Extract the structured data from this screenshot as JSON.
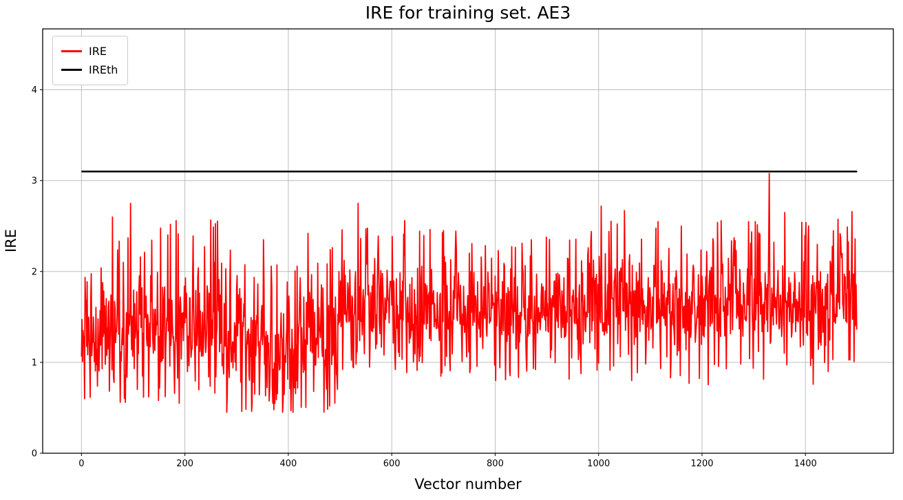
{
  "chart_data": {
    "type": "line",
    "title": "IRE for training set. AE3",
    "xlabel": "Vector number",
    "ylabel": "IRE",
    "xlim": [
      -75,
      1570
    ],
    "ylim": [
      0,
      4.67
    ],
    "xticks": [
      0,
      200,
      400,
      600,
      800,
      1000,
      1200,
      1400
    ],
    "yticks": [
      0,
      1,
      2,
      3,
      4
    ],
    "grid": true,
    "colors": {
      "ire_line": "#ff0000",
      "ireth_line": "#000000",
      "grid": "#bdbdbd",
      "spine": "#000000",
      "background": "#ffffff"
    },
    "legend": {
      "position": "upper-left",
      "entries": [
        {
          "label": "IRE",
          "color": "#ff0000"
        },
        {
          "label": "IREth",
          "color": "#000000"
        }
      ]
    },
    "series": [
      {
        "name": "IRE",
        "color": "#ff0000",
        "type": "noisy-line",
        "n_points": 1500,
        "generator": {
          "seed": 42,
          "segments": [
            {
              "x_start": 0,
              "x_end": 60,
              "mean": 1.35,
              "std": 0.3,
              "min": 0.6,
              "max": 2.1
            },
            {
              "x_start": 60,
              "x_end": 280,
              "mean": 1.42,
              "std": 0.34,
              "min": 0.55,
              "max": 2.58
            },
            {
              "x_start": 280,
              "x_end": 500,
              "mean": 1.24,
              "std": 0.37,
              "min": 0.45,
              "max": 2.3
            },
            {
              "x_start": 500,
              "x_end": 900,
              "mean": 1.58,
              "std": 0.29,
              "min": 0.8,
              "max": 2.48
            },
            {
              "x_start": 900,
              "x_end": 1500,
              "mean": 1.65,
              "std": 0.3,
              "min": 0.75,
              "max": 2.58
            }
          ],
          "peaks": [
            {
              "x": 60,
              "y": 2.6
            },
            {
              "x": 95,
              "y": 2.75
            },
            {
              "x": 172,
              "y": 2.52
            },
            {
              "x": 183,
              "y": 2.56
            },
            {
              "x": 255,
              "y": 2.49
            },
            {
              "x": 352,
              "y": 2.35
            },
            {
              "x": 438,
              "y": 2.42
            },
            {
              "x": 535,
              "y": 2.75
            },
            {
              "x": 625,
              "y": 2.56
            },
            {
              "x": 700,
              "y": 2.45
            },
            {
              "x": 870,
              "y": 2.35
            },
            {
              "x": 1005,
              "y": 2.72
            },
            {
              "x": 1050,
              "y": 2.67
            },
            {
              "x": 1115,
              "y": 2.55
            },
            {
              "x": 1160,
              "y": 2.5
            },
            {
              "x": 1230,
              "y": 2.54
            },
            {
              "x": 1290,
              "y": 2.55
            },
            {
              "x": 1330,
              "y": 3.08
            },
            {
              "x": 1360,
              "y": 2.65
            },
            {
              "x": 1490,
              "y": 2.66
            }
          ],
          "dips": [
            {
              "x": 75,
              "y": 0.56
            },
            {
              "x": 130,
              "y": 0.62
            },
            {
              "x": 310,
              "y": 0.46
            },
            {
              "x": 330,
              "y": 0.55
            },
            {
              "x": 370,
              "y": 0.55
            },
            {
              "x": 480,
              "y": 0.52
            },
            {
              "x": 490,
              "y": 0.55
            },
            {
              "x": 1175,
              "y": 0.77
            }
          ]
        }
      },
      {
        "name": "IREth",
        "color": "#000000",
        "type": "constant",
        "value": 3.1,
        "x_range": [
          0,
          1500
        ]
      }
    ]
  }
}
